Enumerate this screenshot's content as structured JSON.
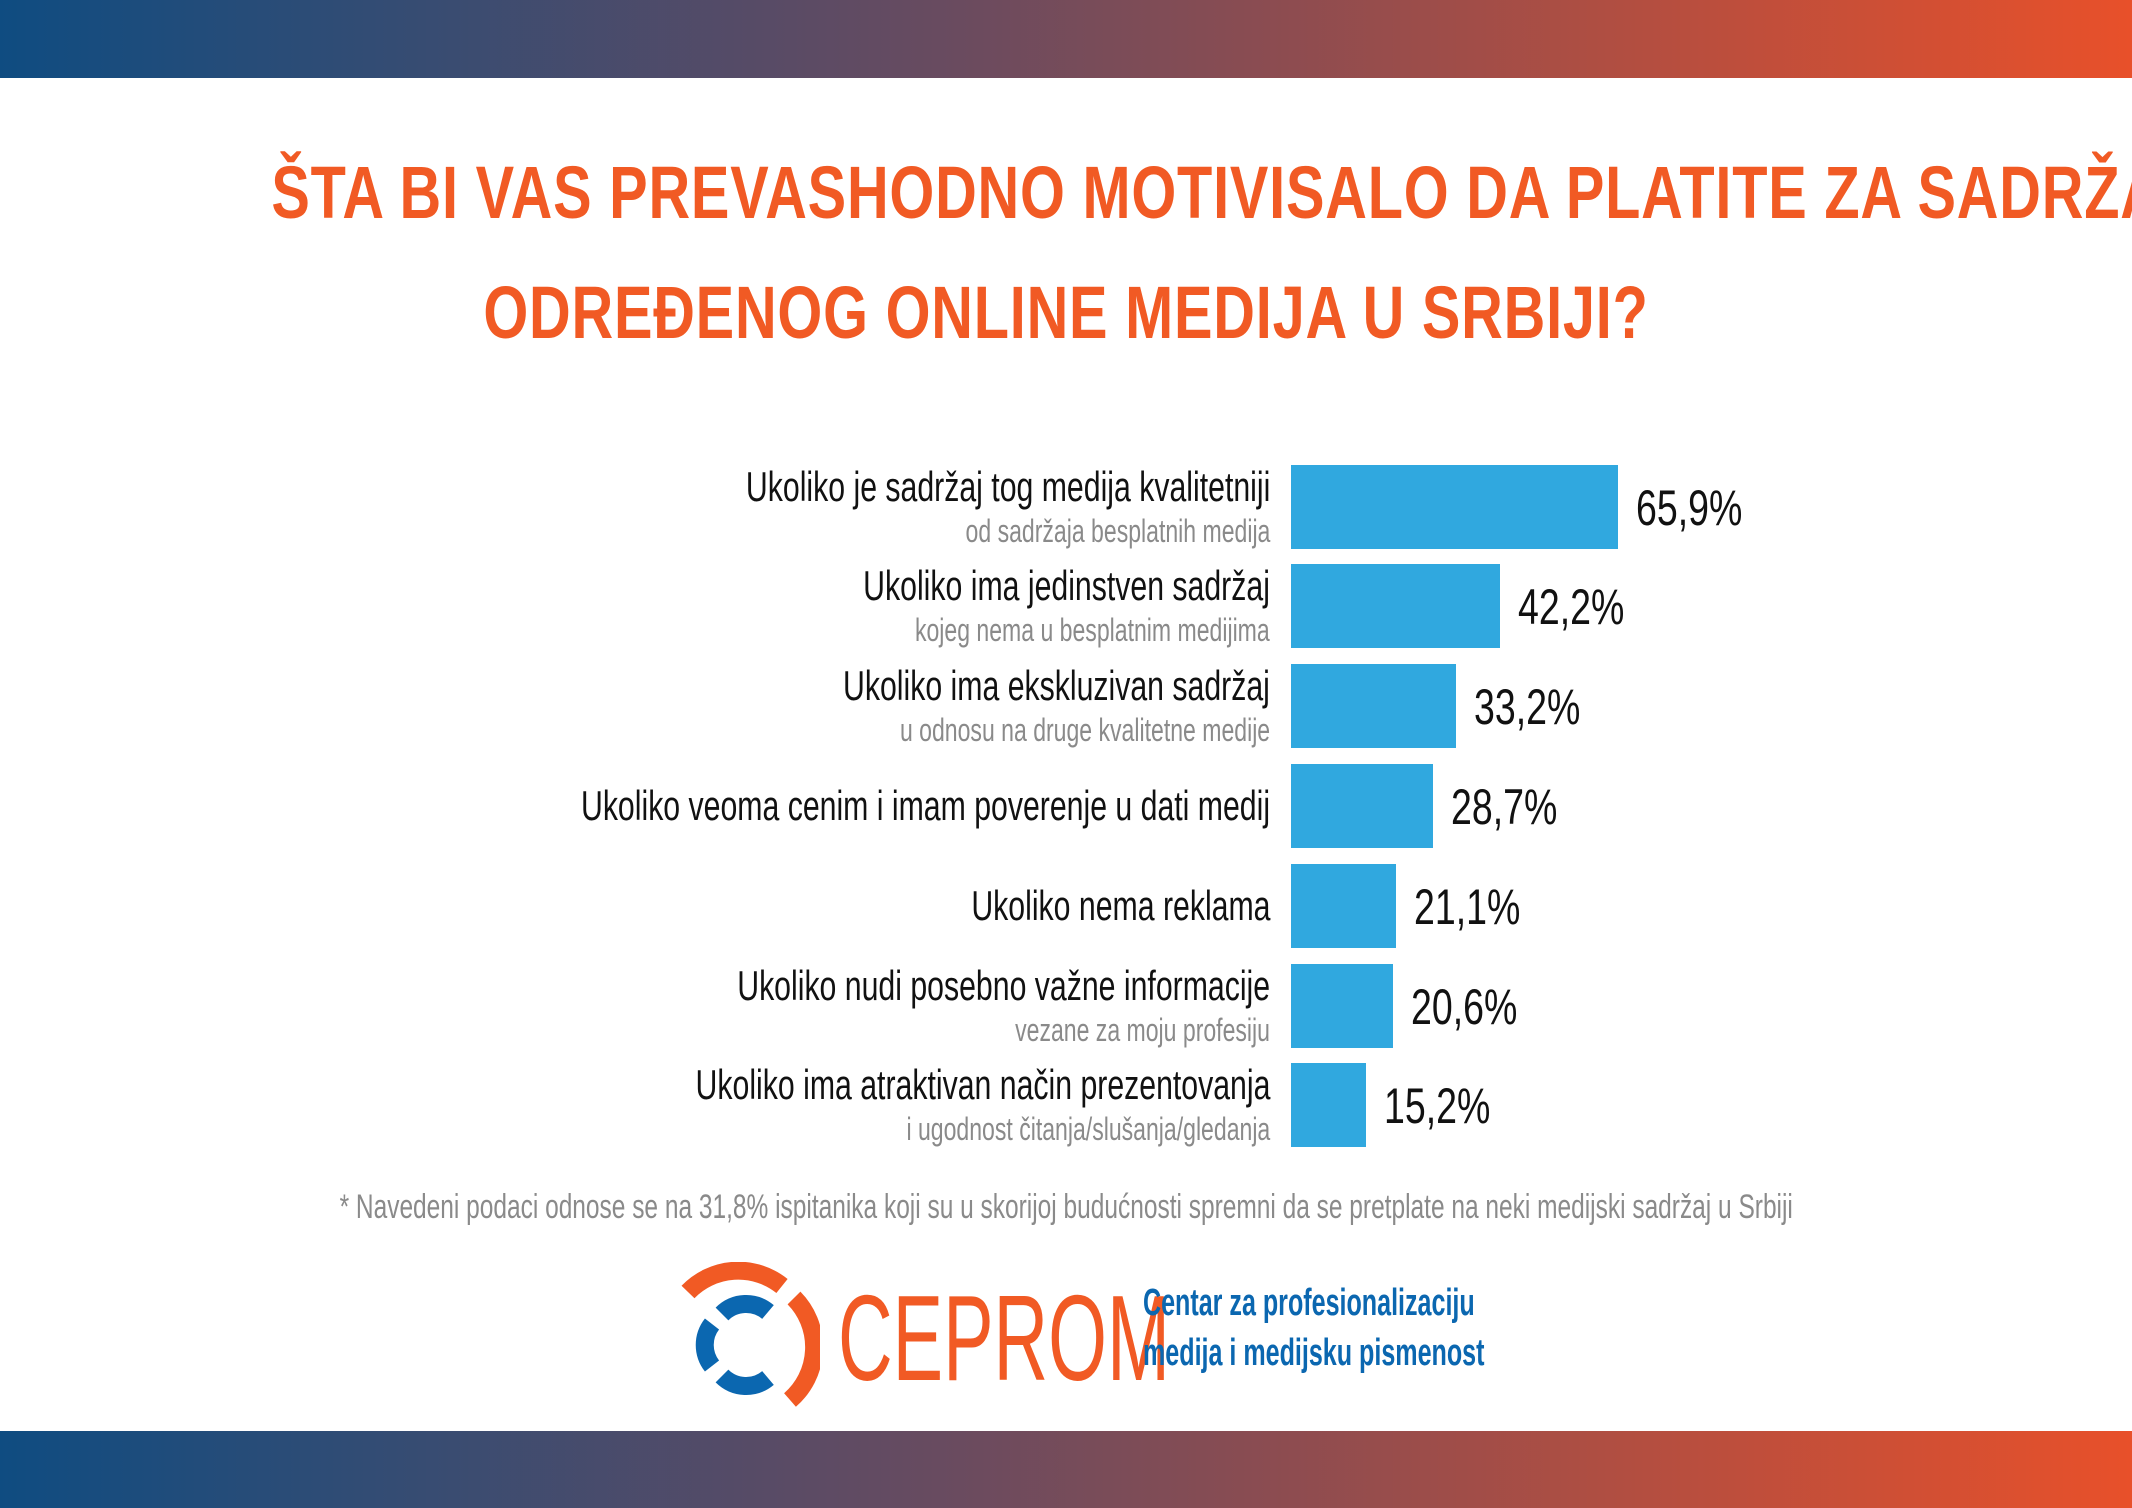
{
  "chart_data": {
    "type": "bar",
    "orientation": "horizontal",
    "title": "ŠTA BI VAS PREVASHODNO MOTIVISALO DA PLATITE ZA SADRŽAJ ODREĐENOG ONLINE MEDIJA U SRBIJI?",
    "title_lines": [
      "ŠTA BI VAS PREVASHODNO MOTIVISALO DA PLATITE ZA SADRŽAJ",
      "ODREĐENOG ONLINE MEDIJA U SRBIJI?"
    ],
    "categories": [
      {
        "main": "Ukoliko je sadržaj tog medija kvalitetniji",
        "sub": "od sadržaja besplatnih medija"
      },
      {
        "main": "Ukoliko ima jedinstven sadržaj",
        "sub": "kojeg nema u besplatnim medijima"
      },
      {
        "main": "Ukoliko ima ekskluzivan sadržaj",
        "sub": "u odnosu na druge kvalitetne medije"
      },
      {
        "main": "Ukoliko veoma cenim i imam poverenje u dati medij",
        "sub": ""
      },
      {
        "main": "Ukoliko nema reklama",
        "sub": ""
      },
      {
        "main": "Ukoliko nudi posebno važne informacije",
        "sub": "vezane za moju profesiju"
      },
      {
        "main": "Ukoliko ima atraktivan način prezentovanja",
        "sub": "i ugodnost čitanja/slušanja/gledanja"
      }
    ],
    "values": [
      65.9,
      42.2,
      33.2,
      28.7,
      21.1,
      20.6,
      15.2
    ],
    "value_labels": [
      "65,9%",
      "42,2%",
      "33,2%",
      "28,7%",
      "21,1%",
      "20,6%",
      "15,2%"
    ],
    "unit": "%",
    "grid": false,
    "bar_color": "#30a8df"
  },
  "footnote": "* Navedeni podaci odnose se na 31,8% ispitanika koji su u skorijoj budućnosti spremni da se pretplate na neki medijski sadržaj u Srbiji",
  "logo": {
    "brand": "CEPROM",
    "org_line1": "Centar za profesionalizaciju",
    "org_line2": "medija i medijsku pismenost",
    "orange": "#f15a24",
    "blue": "#0b67b0"
  }
}
